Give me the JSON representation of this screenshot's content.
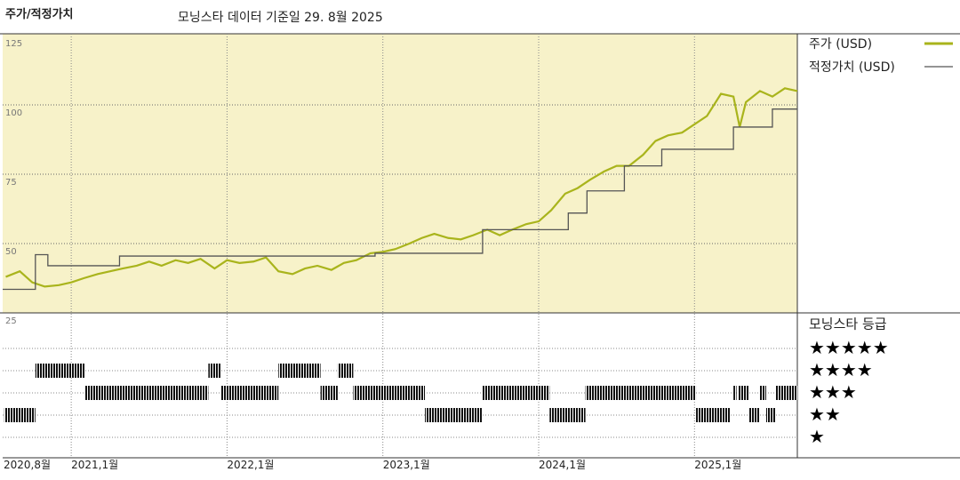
{
  "chart_data": {
    "type": "price-fair-value",
    "title": "주가/적정가치",
    "subtitle": "모닝스타 데이터 기준일 29. 8월 2025",
    "xlim": [
      2020.56,
      2025.66
    ],
    "xticks": [
      {
        "value": 2020.58,
        "label": "2020,8월"
      },
      {
        "value": 2021,
        "label": "2021,1월"
      },
      {
        "value": 2022,
        "label": "2022,1월"
      },
      {
        "value": 2023,
        "label": "2023,1월"
      },
      {
        "value": 2024,
        "label": "2024,1월"
      },
      {
        "value": 2025,
        "label": "2025,1월"
      }
    ],
    "ylim": [
      25,
      125
    ],
    "yticks": [
      25,
      50,
      75,
      100,
      125
    ],
    "grid": true,
    "series": [
      {
        "name": "주가 (USD)",
        "color": "#a9b41c",
        "step": false,
        "x": [
          2020.58,
          2020.67,
          2020.75,
          2020.83,
          2020.92,
          2021.0,
          2021.08,
          2021.17,
          2021.25,
          2021.33,
          2021.42,
          2021.5,
          2021.58,
          2021.67,
          2021.75,
          2021.83,
          2021.92,
          2022.0,
          2022.08,
          2022.17,
          2022.25,
          2022.33,
          2022.42,
          2022.5,
          2022.58,
          2022.67,
          2022.75,
          2022.83,
          2022.92,
          2023.0,
          2023.08,
          2023.17,
          2023.25,
          2023.33,
          2023.42,
          2023.5,
          2023.58,
          2023.67,
          2023.75,
          2023.83,
          2023.92,
          2024.0,
          2024.08,
          2024.17,
          2024.25,
          2024.33,
          2024.42,
          2024.5,
          2024.58,
          2024.67,
          2024.75,
          2024.83,
          2024.92,
          2025.0,
          2025.08,
          2025.17,
          2025.25,
          2025.29,
          2025.33,
          2025.42,
          2025.5,
          2025.58,
          2025.66
        ],
        "values": [
          38,
          40,
          36,
          34.5,
          35,
          36,
          37.5,
          39,
          40,
          41,
          42,
          43.5,
          42,
          44,
          43,
          44.5,
          41,
          44,
          43,
          43.5,
          45,
          40,
          39,
          41,
          42,
          40.5,
          43,
          44,
          46.5,
          47,
          48,
          50,
          52,
          53.5,
          52,
          51.5,
          53,
          55,
          53,
          55,
          57,
          58,
          62,
          68,
          70,
          73,
          76,
          78,
          78,
          82,
          87,
          89,
          90,
          93,
          96,
          104,
          103,
          92,
          101,
          105,
          103,
          106,
          105
        ]
      },
      {
        "name": "적정가치 (USD)",
        "color": "#555555",
        "step": true,
        "x": [
          2020.56,
          2020.77,
          2020.85,
          2021.31,
          2022.95,
          2023.64,
          2024.19,
          2024.31,
          2024.55,
          2024.79,
          2025.25,
          2025.5
        ],
        "values": [
          33.5,
          46,
          42,
          45.5,
          46.5,
          55,
          61,
          69,
          78,
          84,
          92,
          98.5
        ]
      }
    ],
    "rating_title": "모닝스타 등급",
    "rating_legend": [
      "★★★★★",
      "★★★★",
      "★★★",
      "★★",
      "★"
    ],
    "ratings": [
      {
        "start": 2020.57,
        "end": 2020.77,
        "stars": 2
      },
      {
        "start": 2020.77,
        "end": 2021.09,
        "stars": 4
      },
      {
        "start": 2021.09,
        "end": 2021.88,
        "stars": 3
      },
      {
        "start": 2021.88,
        "end": 2021.96,
        "stars": 4
      },
      {
        "start": 2021.96,
        "end": 2022.33,
        "stars": 3
      },
      {
        "start": 2022.33,
        "end": 2022.6,
        "stars": 4
      },
      {
        "start": 2022.6,
        "end": 2022.71,
        "stars": 3
      },
      {
        "start": 2022.71,
        "end": 2022.81,
        "stars": 4
      },
      {
        "start": 2022.81,
        "end": 2023.27,
        "stars": 3
      },
      {
        "start": 2023.27,
        "end": 2023.64,
        "stars": 2
      },
      {
        "start": 2023.64,
        "end": 2024.07,
        "stars": 3
      },
      {
        "start": 2024.07,
        "end": 2024.3,
        "stars": 2
      },
      {
        "start": 2024.3,
        "end": 2025.01,
        "stars": 3
      },
      {
        "start": 2025.01,
        "end": 2025.23,
        "stars": 2
      },
      {
        "start": 2025.25,
        "end": 2025.27,
        "stars": 3
      },
      {
        "start": 2025.28,
        "end": 2025.35,
        "stars": 3
      },
      {
        "start": 2025.35,
        "end": 2025.42,
        "stars": 2
      },
      {
        "start": 2025.42,
        "end": 2025.46,
        "stars": 3
      },
      {
        "start": 2025.46,
        "end": 2025.52,
        "stars": 2
      },
      {
        "start": 2025.52,
        "end": 2025.66,
        "stars": 3
      }
    ]
  }
}
